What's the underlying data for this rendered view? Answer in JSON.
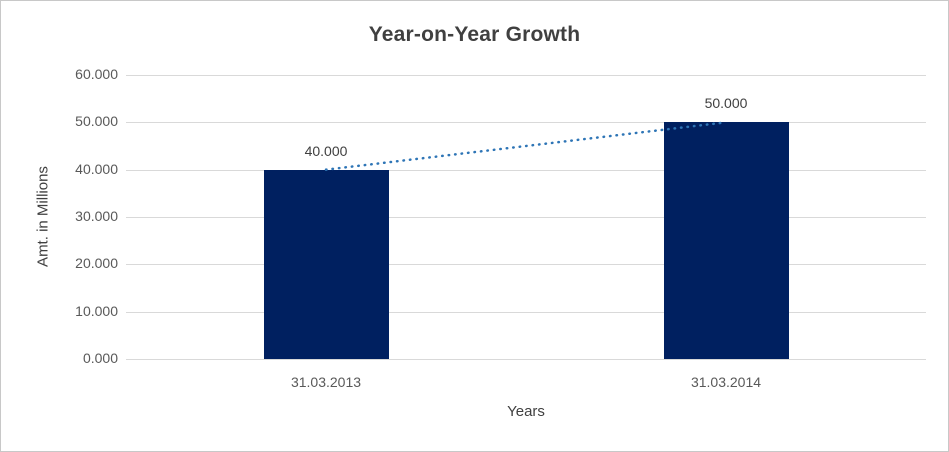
{
  "chart_data": {
    "type": "bar",
    "title": "Year-on-Year Growth",
    "xlabel": "Years",
    "ylabel": "Amt. in Millions",
    "categories": [
      "31.03.2013",
      "31.03.2014"
    ],
    "values": [
      40,
      50
    ],
    "data_labels": [
      "40.000",
      "50.000"
    ],
    "ylim": [
      0,
      60
    ],
    "ytick_step": 10,
    "ytick_labels": [
      "0.000",
      "10.000",
      "20.000",
      "30.000",
      "40.000",
      "50.000",
      "60.000"
    ],
    "grid": true,
    "legend": "none",
    "bar_color": "#002060",
    "trendline": {
      "style": "dotted",
      "color": "#2E75B6",
      "from_value": 40,
      "to_value": 50
    },
    "colors": {
      "title_text": "#404040",
      "axis_text": "#595959",
      "gridline": "#d9d9d9",
      "frame_border": "#c8c8c8",
      "background": "#ffffff"
    }
  }
}
